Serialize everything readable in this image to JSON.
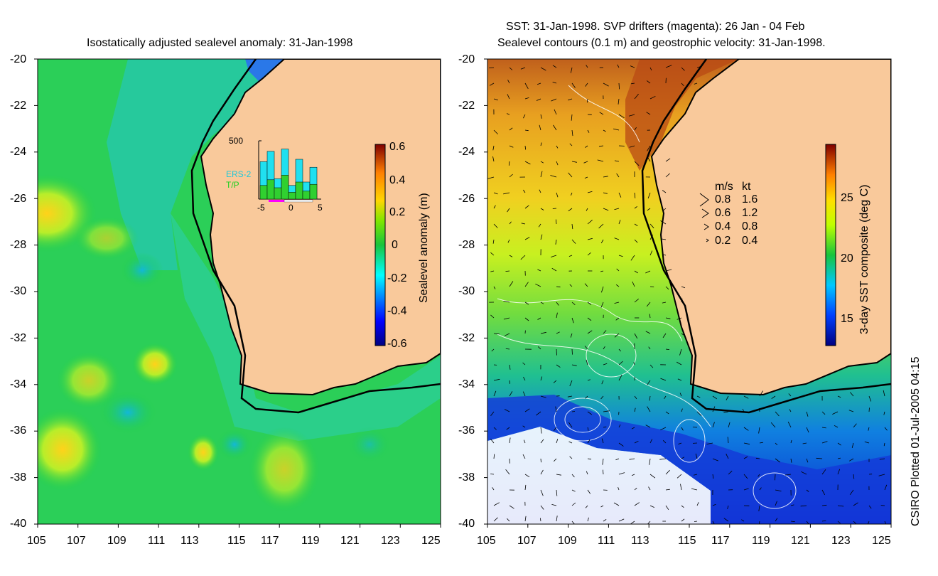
{
  "left_panel": {
    "title": "Isostatically adjusted sealevel anomaly: 31-Jan-1998",
    "y_ticks": [
      "-20",
      "-22",
      "-24",
      "-26",
      "-28",
      "-30",
      "-32",
      "-34",
      "-36",
      "-38",
      "-40"
    ],
    "x_ticks": [
      "105",
      "107",
      "109",
      "111",
      "113",
      "115",
      "117",
      "119",
      "121",
      "123",
      "125"
    ],
    "colorbar": {
      "label": "Sealevel anomaly (m)",
      "ticks": [
        "0.6",
        "0.4",
        "0.2",
        "0",
        "-0.2",
        "-0.4",
        "-0.6"
      ]
    },
    "inset": {
      "y_label": "500",
      "x_ticks": [
        "-5",
        "0",
        "5"
      ],
      "legend": [
        "ERS-2",
        "T/P"
      ],
      "ers2_values": [
        330,
        420,
        180,
        440,
        120,
        350,
        150,
        280
      ],
      "tp_values": [
        120,
        170,
        100,
        210,
        60,
        150,
        70,
        130
      ]
    }
  },
  "right_panel": {
    "title_line1": "SST: 31-Jan-1998. SVP drifters (magenta): 26 Jan - 04 Feb",
    "title_line2": "Sealevel contours (0.1 m) and geostrophic velocity: 31-Jan-1998.",
    "y_ticks": [
      "-20",
      "-22",
      "-24",
      "-26",
      "-28",
      "-30",
      "-32",
      "-34",
      "-36",
      "-38",
      "-40"
    ],
    "x_ticks": [
      "105",
      "107",
      "109",
      "111",
      "113",
      "115",
      "117",
      "119",
      "121",
      "123",
      "125"
    ],
    "colorbar": {
      "label": "3-day SST composite (deg C)",
      "ticks": [
        "25",
        "20",
        "15"
      ]
    },
    "velocity_legend": {
      "headers": [
        "m/s",
        "kt"
      ],
      "rows": [
        {
          "ms": "0.8",
          "kt": "1.6"
        },
        {
          "ms": "0.6",
          "kt": "1.2"
        },
        {
          "ms": "0.4",
          "kt": "0.8"
        },
        {
          "ms": "0.2",
          "kt": "0.4"
        }
      ]
    }
  },
  "footer_credit": "CSIRO Plotted 01-Jul-2005 04:15",
  "colors": {
    "land": "#f9c99b",
    "coast": "#000000",
    "ssa_low": "#00007f",
    "ssa_high": "#7f0000"
  }
}
